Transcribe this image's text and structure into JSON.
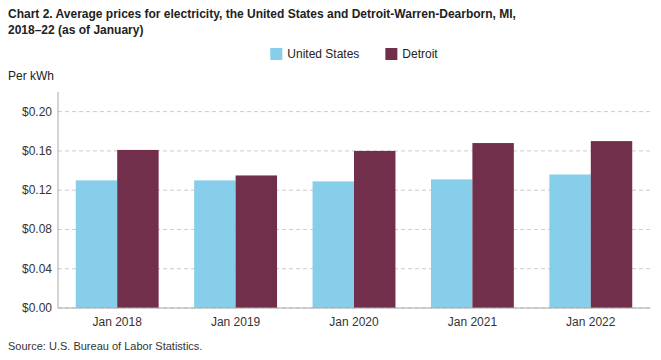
{
  "chart_data": {
    "type": "bar",
    "title": "Chart 2. Average prices for electricity, the United States and Detroit-Warren-Dearborn, MI,",
    "subtitle": "2018–22 (as of January)",
    "ylabel": "Per kWh",
    "annotations": [
      "Source: U.S. Bureau of Labor Statistics."
    ],
    "categories": [
      "Jan 2018",
      "Jan 2019",
      "Jan 2020",
      "Jan 2021",
      "Jan 2022"
    ],
    "series": [
      {
        "name": "United States",
        "color": "#87CEEB",
        "values": [
          0.13,
          0.13,
          0.129,
          0.131,
          0.136
        ]
      },
      {
        "name": "Detroit",
        "color": "#722F4B",
        "values": [
          0.161,
          0.135,
          0.16,
          0.168,
          0.17
        ]
      }
    ],
    "ylim": [
      0.0,
      0.22
    ],
    "yticks": [
      {
        "value": 0.0,
        "label": "$0.00"
      },
      {
        "value": 0.04,
        "label": "$0.04"
      },
      {
        "value": 0.08,
        "label": "$0.08"
      },
      {
        "value": 0.12,
        "label": "$0.12"
      },
      {
        "value": 0.16,
        "label": "$0.16"
      },
      {
        "value": 0.2,
        "label": "$0.20"
      }
    ],
    "grid": true,
    "legend": "top"
  }
}
